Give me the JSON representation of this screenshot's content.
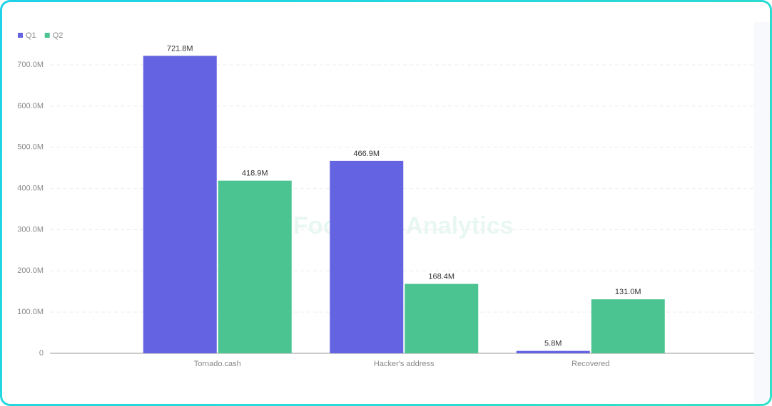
{
  "watermark": "Footprint Analytics",
  "chart_data": {
    "type": "bar",
    "categories": [
      "Tornado.cash",
      "Hacker's address",
      "Recovered"
    ],
    "series": [
      {
        "name": "Q1",
        "color": "#6464e2",
        "values": [
          721.8,
          466.9,
          5.8
        ],
        "value_labels": [
          "721.8M",
          "466.9M",
          "5.8M"
        ]
      },
      {
        "name": "Q2",
        "color": "#4cc492",
        "values": [
          418.9,
          168.4,
          131.0
        ],
        "value_labels": [
          "418.9M",
          "168.4M",
          "131.0M"
        ]
      }
    ],
    "ylim": [
      0,
      700
    ],
    "yticks": [
      0,
      {
        "value": 100,
        "label": "100.0M"
      },
      {
        "value": 200,
        "label": "200.0M"
      },
      {
        "value": 300,
        "label": "300.0M"
      },
      {
        "value": 400,
        "label": "400.0M"
      },
      {
        "value": 500,
        "label": "500.0M"
      },
      {
        "value": 600,
        "label": "600.0M"
      },
      {
        "value": 700,
        "label": "700.0M"
      }
    ],
    "grid": true,
    "legend": "top-left"
  }
}
